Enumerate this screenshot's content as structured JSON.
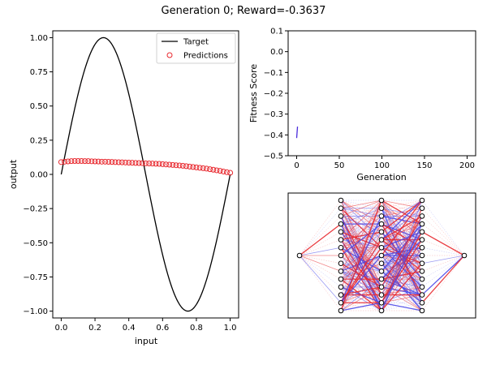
{
  "figure": {
    "title": "Generation 0; Reward=-0.3637"
  },
  "chart_data": [
    {
      "type": "line",
      "panel": "left",
      "xlabel": "input",
      "ylabel": "output",
      "xlim": [
        -0.05,
        1.05
      ],
      "ylim": [
        -1.05,
        1.05
      ],
      "xticks": [
        0.0,
        0.2,
        0.4,
        0.6,
        0.8,
        1.0
      ],
      "xtick_labels": [
        "0.0",
        "0.2",
        "0.4",
        "0.6",
        "0.8",
        "1.0"
      ],
      "yticks": [
        -1.0,
        -0.75,
        -0.5,
        -0.25,
        0.0,
        0.25,
        0.5,
        0.75,
        1.0
      ],
      "ytick_labels": [
        "−1.00",
        "−0.75",
        "−0.50",
        "−0.25",
        "0.00",
        "0.25",
        "0.50",
        "0.75",
        "1.00"
      ],
      "legend": {
        "position": "top-right",
        "entries": [
          "Target",
          "Predictions"
        ]
      },
      "series": [
        {
          "name": "Target",
          "kind": "line",
          "color": "#000000",
          "function": "sin(2*pi*x)",
          "x_range": [
            0,
            1
          ]
        },
        {
          "name": "Predictions",
          "kind": "scatter",
          "marker": "circle-open",
          "color": "#e8282e",
          "x": [
            0.0,
            0.02,
            0.04,
            0.06,
            0.08,
            0.1,
            0.12,
            0.14,
            0.16,
            0.18,
            0.2,
            0.22,
            0.24,
            0.26,
            0.28,
            0.3,
            0.32,
            0.34,
            0.36,
            0.38,
            0.4,
            0.42,
            0.44,
            0.46,
            0.48,
            0.5,
            0.52,
            0.54,
            0.56,
            0.58,
            0.6,
            0.62,
            0.64,
            0.66,
            0.68,
            0.7,
            0.72,
            0.74,
            0.76,
            0.78,
            0.8,
            0.82,
            0.84,
            0.86,
            0.88,
            0.9,
            0.92,
            0.94,
            0.96,
            0.98,
            1.0
          ],
          "y": [
            0.09,
            0.093,
            0.095,
            0.097,
            0.098,
            0.098,
            0.098,
            0.097,
            0.097,
            0.096,
            0.095,
            0.094,
            0.093,
            0.093,
            0.092,
            0.091,
            0.09,
            0.089,
            0.088,
            0.087,
            0.086,
            0.085,
            0.084,
            0.083,
            0.082,
            0.081,
            0.08,
            0.079,
            0.078,
            0.077,
            0.075,
            0.073,
            0.071,
            0.069,
            0.067,
            0.065,
            0.063,
            0.06,
            0.057,
            0.054,
            0.051,
            0.048,
            0.045,
            0.042,
            0.038,
            0.034,
            0.03,
            0.026,
            0.021,
            0.016,
            0.012
          ]
        }
      ]
    },
    {
      "type": "line",
      "panel": "top-right",
      "xlabel": "Generation",
      "ylabel": "Fitness Score",
      "xlim": [
        -10,
        210
      ],
      "ylim": [
        -0.5,
        0.1
      ],
      "xticks": [
        0,
        50,
        100,
        150,
        200
      ],
      "xtick_labels": [
        "0",
        "50",
        "100",
        "150",
        "200"
      ],
      "yticks": [
        -0.5,
        -0.4,
        -0.3,
        -0.2,
        -0.1,
        0.0,
        0.1
      ],
      "ytick_labels": [
        "−0.5",
        "−0.4",
        "−0.3",
        "−0.2",
        "−0.1",
        "0.0",
        "0.1"
      ],
      "series": [
        {
          "color": "#4b2cdc",
          "x": [
            0,
            1
          ],
          "y": [
            -0.415,
            -0.36
          ]
        }
      ]
    },
    {
      "type": "network",
      "panel": "bottom-right",
      "layers": [
        1,
        15,
        15,
        15,
        1
      ],
      "edge_colors": {
        "positive": "#e8282e",
        "negative": "#4b48e8"
      }
    }
  ]
}
